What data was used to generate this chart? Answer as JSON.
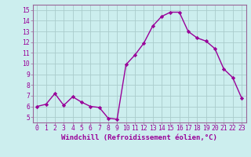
{
  "x": [
    0,
    1,
    2,
    3,
    4,
    5,
    6,
    7,
    8,
    9,
    10,
    11,
    12,
    13,
    14,
    15,
    16,
    17,
    18,
    19,
    20,
    21,
    22,
    23
  ],
  "y": [
    6.0,
    6.2,
    7.2,
    6.1,
    6.9,
    6.4,
    6.0,
    5.9,
    4.9,
    4.8,
    9.9,
    10.8,
    11.9,
    13.5,
    14.4,
    14.8,
    14.8,
    13.0,
    12.4,
    12.1,
    11.4,
    9.5,
    8.7,
    6.8
  ],
  "line_color": "#990099",
  "marker": "D",
  "marker_size": 2.2,
  "bg_color": "#cceeee",
  "grid_color": "#aacccc",
  "xlabel": "Windchill (Refroidissement éolien,°C)",
  "xlabel_fontsize": 6.5,
  "ylabel_ticks": [
    5,
    6,
    7,
    8,
    9,
    10,
    11,
    12,
    13,
    14,
    15
  ],
  "ylim": [
    4.5,
    15.5
  ],
  "xlim": [
    -0.5,
    23.5
  ],
  "xticks": [
    0,
    1,
    2,
    3,
    4,
    5,
    6,
    7,
    8,
    9,
    10,
    11,
    12,
    13,
    14,
    15,
    16,
    17,
    18,
    19,
    20,
    21,
    22,
    23
  ],
  "tick_fontsize": 5.8,
  "label_color": "#990099",
  "spine_color": "#996699",
  "linewidth": 1.0
}
